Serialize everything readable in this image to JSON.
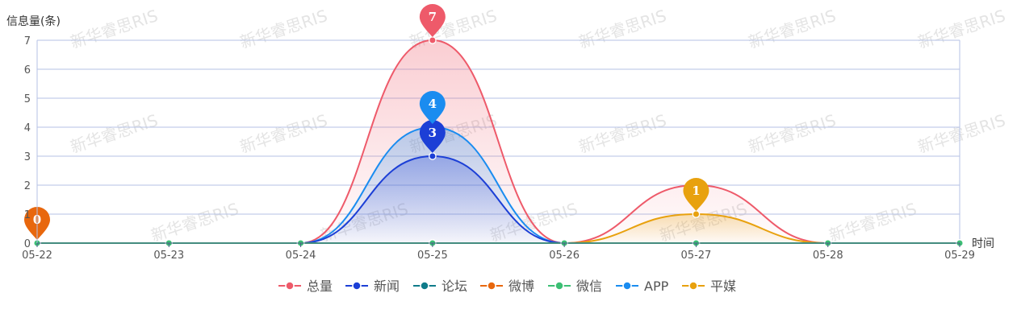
{
  "chart_data": {
    "type": "line",
    "ylabel": "信息量(条)",
    "xlabel": "时间",
    "ylim": [
      0,
      7
    ],
    "y_ticks": [
      0,
      1,
      2,
      3,
      4,
      5,
      6,
      7
    ],
    "grid": true,
    "smooth": true,
    "legend_position": "bottom",
    "watermark": "新华睿思RIS",
    "categories": [
      "05-22",
      "05-23",
      "05-24",
      "05-25",
      "05-26",
      "05-27",
      "05-28",
      "05-29"
    ],
    "series": [
      {
        "name": "总量",
        "color": "#ee5a6a",
        "area": true,
        "values": [
          0,
          0,
          0,
          7,
          0,
          2,
          0,
          0
        ],
        "marker": {
          "index": 3,
          "label": "7"
        }
      },
      {
        "name": "新闻",
        "color": "#1c3fd6",
        "area": true,
        "values": [
          0,
          0,
          0,
          3,
          0,
          0,
          0,
          0
        ],
        "marker": {
          "index": 3,
          "label": "3"
        }
      },
      {
        "name": "论坛",
        "color": "#0f7b8a",
        "area": false,
        "values": [
          0,
          0,
          0,
          0,
          0,
          0,
          0,
          0
        ]
      },
      {
        "name": "微博",
        "color": "#e8670d",
        "area": false,
        "values": [
          0,
          0,
          0,
          0,
          0,
          0,
          0,
          0
        ],
        "marker": {
          "index": 0,
          "label": "0"
        }
      },
      {
        "name": "微信",
        "color": "#3cbf74",
        "area": false,
        "values": [
          0,
          0,
          0,
          0,
          0,
          0,
          0,
          0
        ]
      },
      {
        "name": "APP",
        "color": "#1a8cf0",
        "area": true,
        "values": [
          0,
          0,
          0,
          4,
          0,
          0,
          0,
          0
        ],
        "marker": {
          "index": 3,
          "label": "4"
        }
      },
      {
        "name": "平媒",
        "color": "#e8a10e",
        "area": true,
        "values": [
          0,
          0,
          0,
          0,
          0,
          1,
          0,
          0
        ],
        "marker": {
          "index": 5,
          "label": "1"
        }
      }
    ]
  }
}
